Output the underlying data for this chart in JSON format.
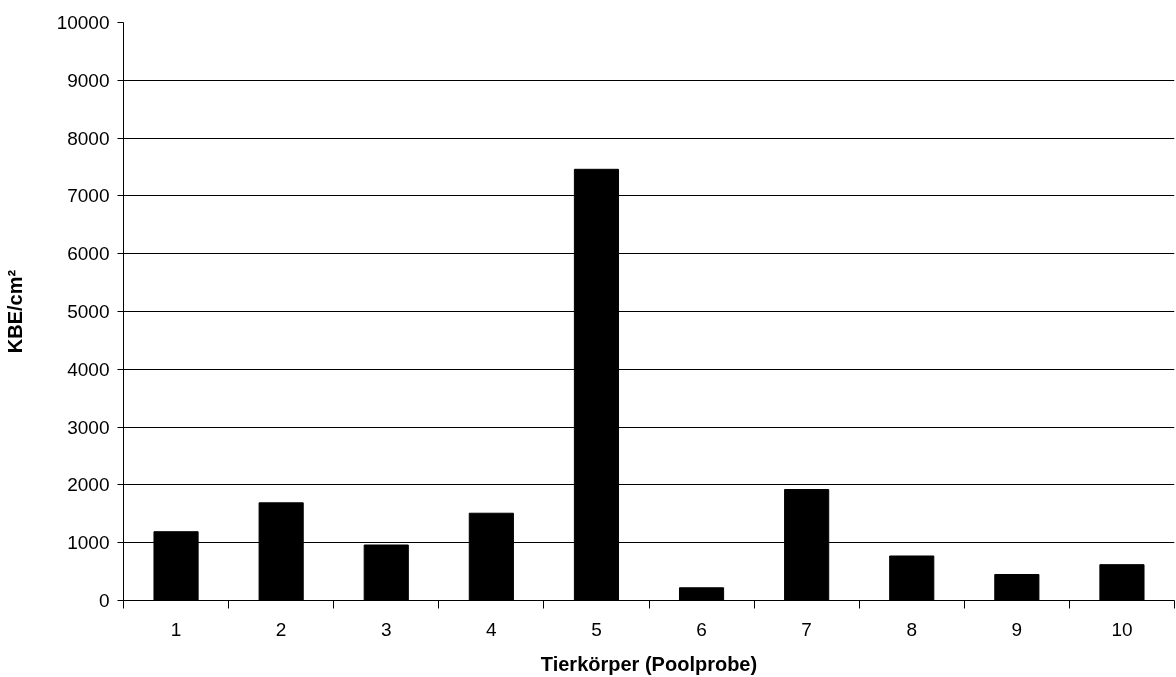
{
  "chart_data": {
    "type": "bar",
    "xlabel": "Tierkörper (Poolprobe)",
    "ylabel": "KBE/cm²",
    "categories": [
      "1",
      "2",
      "3",
      "4",
      "5",
      "6",
      "7",
      "8",
      "9",
      "10"
    ],
    "values": [
      1190,
      1690,
      960,
      1510,
      7460,
      220,
      1920,
      770,
      450,
      620
    ],
    "color": "#000000",
    "ylim": [
      0,
      10000
    ],
    "yticks": [
      0,
      1000,
      2000,
      3000,
      4000,
      5000,
      6000,
      7000,
      8000,
      9000,
      10000
    ],
    "grid": "y"
  }
}
